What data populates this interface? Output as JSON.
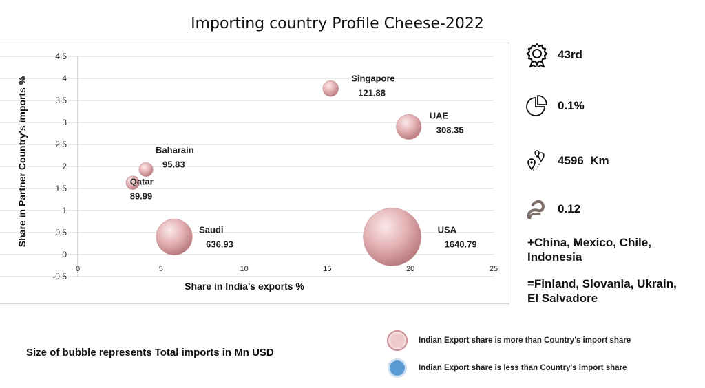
{
  "chart_data": {
    "type": "scatter",
    "subtype": "bubble",
    "title": "Importing country Profile Cheese-2022",
    "xlabel": "Share in India's exports %",
    "ylabel": "Share in Partner Country's imports %",
    "xlim": [
      0,
      25
    ],
    "ylim": [
      -0.5,
      4.5
    ],
    "x_ticks": [
      0,
      5,
      10,
      15,
      20,
      25
    ],
    "y_ticks": [
      -0.5,
      0,
      0.5,
      1,
      1.5,
      2,
      2.5,
      3,
      3.5,
      4,
      4.5
    ],
    "grid": true,
    "points": [
      {
        "label": "Singapore",
        "size_label": "121.88",
        "x": 15.2,
        "y": 3.77,
        "size": 121.88,
        "category": "more"
      },
      {
        "label": "UAE",
        "size_label": "308.35",
        "x": 19.9,
        "y": 2.9,
        "size": 308.35,
        "category": "more"
      },
      {
        "label": "Baharain",
        "size_label": "95.83",
        "x": 4.1,
        "y": 1.93,
        "size": 95.83,
        "category": "more"
      },
      {
        "label": "Qatar",
        "size_label": "89.99",
        "x": 3.3,
        "y": 1.63,
        "size": 89.99,
        "category": "more"
      },
      {
        "label": "Saudi",
        "size_label": "636.93",
        "x": 5.8,
        "y": 0.4,
        "size": 636.93,
        "category": "more"
      },
      {
        "label": "USA",
        "size_label": "1640.79",
        "x": 18.9,
        "y": 0.4,
        "size": 1640.79,
        "category": "more"
      }
    ],
    "colors": {
      "more": "#e6b1b4",
      "less": "#5b9bd5"
    }
  },
  "side_stats": [
    {
      "icon": "award-ribbon-icon",
      "value": "43rd"
    },
    {
      "icon": "pie-chart-icon",
      "value": "0.1%"
    },
    {
      "icon": "map-pins-icon",
      "value": "4596  Km"
    },
    {
      "icon": "curve-icon",
      "value": "0.12"
    }
  ],
  "competitors_plus": "+China, Mexico, Chile,\n Indonesia",
  "competitors_equal": "=Finland, Slovania, Ukrain,\n El Salvadore",
  "note": "Size of bubble represents Total imports in Mn USD",
  "legend": [
    {
      "key": "more",
      "label": "Indian Export share is more than Country's import share"
    },
    {
      "key": "less",
      "label": "Indian Export share is less than Country's import share"
    }
  ]
}
